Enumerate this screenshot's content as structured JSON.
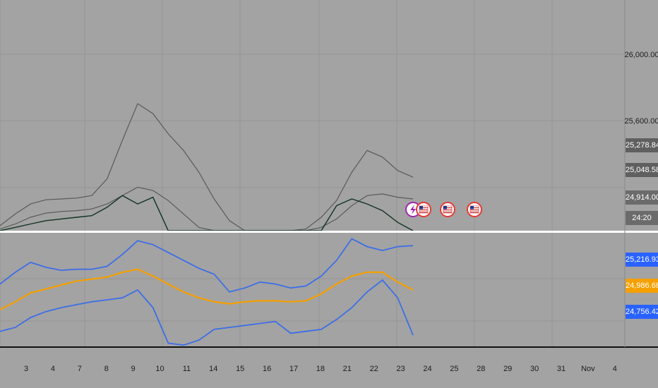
{
  "chart_data": [
    {
      "type": "line",
      "panel": "price",
      "y_ticks": [
        "26,000.00",
        "25,600.00"
      ],
      "ylim": [
        24800,
        26180
      ],
      "last_values": [
        {
          "label": "25,278.84",
          "value": 25278.84,
          "color": "#5f5f5f"
        },
        {
          "label": "25,048.58",
          "value": 25048.58,
          "color": "#5f5f5f"
        },
        {
          "label": "24,914.00",
          "value": 24914.0,
          "color": "#6b6b6b"
        }
      ],
      "countdown": "24:20",
      "series": [
        {
          "role": "upper-band",
          "color": "#5a5a5a",
          "values": [
            24830,
            24900,
            24960,
            24985,
            24990,
            24995,
            25010,
            25110,
            25340,
            25560,
            25500,
            25380,
            25280,
            25150,
            24990,
            24860,
            24800,
            24800,
            24800,
            24800,
            24810,
            24880,
            24980,
            25150,
            25280,
            25240,
            25160,
            25120
          ]
        },
        {
          "role": "middle-band",
          "color": "#5a5a5a",
          "values": [
            24810,
            24840,
            24880,
            24905,
            24915,
            24920,
            24930,
            24960,
            25010,
            25060,
            25040,
            24980,
            24900,
            24820,
            24800,
            24800,
            24800,
            24800,
            24800,
            24800,
            24800,
            24820,
            24870,
            24950,
            25010,
            25020,
            25000,
            24990
          ]
        },
        {
          "role": "price",
          "color": "#0f3320",
          "values": [
            24800,
            24820,
            24840,
            24860,
            24870,
            24880,
            24890,
            24940,
            25010,
            24960,
            25000,
            24800,
            24800,
            24800,
            24800,
            24800,
            24800,
            24800,
            24800,
            24800,
            24800,
            24800,
            24950,
            24990,
            24960,
            24920,
            24850,
            24800
          ]
        }
      ],
      "event_markers": [
        {
          "icon": "lightning-icon",
          "color": "#9c27b0"
        },
        {
          "icon": "us-flag-icon",
          "color": "#e53935"
        },
        {
          "icon": "us-flag-icon",
          "color": "#e53935"
        },
        {
          "icon": "us-flag-icon",
          "color": "#e53935"
        }
      ]
    },
    {
      "type": "line",
      "panel": "indicator",
      "ylim": [
        24700,
        25280
      ],
      "last_values": [
        {
          "label": "25,216.93",
          "value": 25216.93,
          "color": "#2962ff"
        },
        {
          "label": "24,986.68",
          "value": 24986.68,
          "color": "#f5a000"
        },
        {
          "label": "24,756.42",
          "value": 24756.42,
          "color": "#2962ff"
        }
      ],
      "series": [
        {
          "role": "upper-band",
          "color": "#3d6ee6",
          "values": [
            25020,
            25080,
            25130,
            25105,
            25090,
            25095,
            25095,
            25110,
            25170,
            25240,
            25220,
            25180,
            25140,
            25100,
            25070,
            24980,
            25000,
            25030,
            25020,
            25000,
            25010,
            25060,
            25140,
            25250,
            25210,
            25190,
            25210,
            25215
          ]
        },
        {
          "role": "basis",
          "color": "#f5a000",
          "values": [
            24890,
            24930,
            24975,
            24995,
            25015,
            25035,
            25045,
            25055,
            25080,
            25095,
            25060,
            25020,
            24980,
            24950,
            24930,
            24920,
            24930,
            24935,
            24935,
            24930,
            24935,
            24970,
            25020,
            25060,
            25080,
            25080,
            25030,
            24990
          ]
        },
        {
          "role": "lower-band",
          "color": "#3d6ee6",
          "values": [
            24780,
            24800,
            24850,
            24880,
            24900,
            24915,
            24930,
            24940,
            24950,
            24990,
            24900,
            24720,
            24710,
            24735,
            24790,
            24800,
            24810,
            24820,
            24830,
            24770,
            24780,
            24790,
            24840,
            24900,
            24980,
            25040,
            24950,
            24760
          ]
        }
      ]
    },
    {
      "type": "axis",
      "panel": "time",
      "x_ticks": [
        "3",
        "4",
        "7",
        "8",
        "9",
        "10",
        "11",
        "14",
        "15",
        "16",
        "17",
        "18",
        "21",
        "22",
        "23",
        "24",
        "25",
        "28",
        "29",
        "30",
        "31",
        "Nov",
        "4"
      ]
    }
  ]
}
